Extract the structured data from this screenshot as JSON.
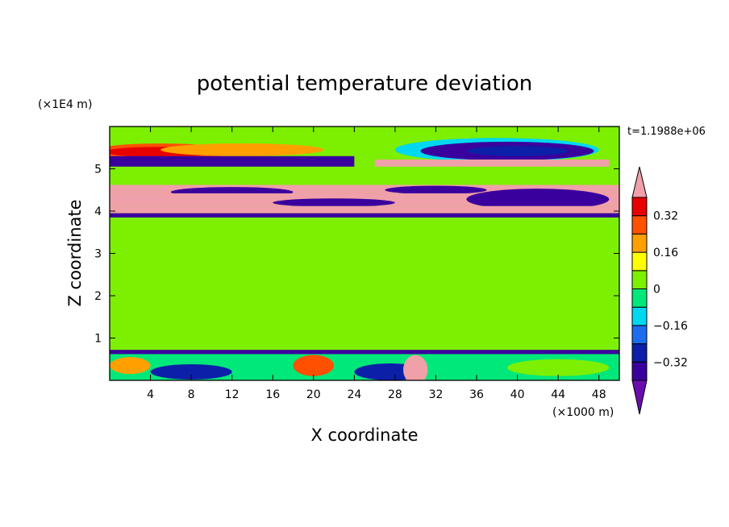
{
  "chart_data": {
    "type": "heatmap",
    "title": "potential temperature deviation",
    "time_label": "t=1.1988e+06",
    "xlabel": "X coordinate",
    "ylabel": "Z coordinate",
    "x_unit": "(×1000 m)",
    "y_unit": "(×1E4 m)",
    "xlim": [
      0,
      50
    ],
    "ylim": [
      0,
      6
    ],
    "x_ticks": [
      {
        "value": 4,
        "label": "4"
      },
      {
        "value": 8,
        "label": "8"
      },
      {
        "value": 12,
        "label": "12"
      },
      {
        "value": 16,
        "label": "16"
      },
      {
        "value": 20,
        "label": "20"
      },
      {
        "value": 24,
        "label": "24"
      },
      {
        "value": 28,
        "label": "28"
      },
      {
        "value": 32,
        "label": "32"
      },
      {
        "value": 36,
        "label": "36"
      },
      {
        "value": 40,
        "label": "40"
      },
      {
        "value": 44,
        "label": "44"
      },
      {
        "value": 48,
        "label": "48"
      }
    ],
    "y_ticks": [
      {
        "value": 1,
        "label": "1"
      },
      {
        "value": 2,
        "label": "2"
      },
      {
        "value": 3,
        "label": "3"
      },
      {
        "value": 4,
        "label": "4"
      },
      {
        "value": 5,
        "label": "5"
      }
    ],
    "colorbar": {
      "levels": [
        -0.4,
        -0.32,
        -0.24,
        -0.16,
        -0.08,
        0,
        0.08,
        0.16,
        0.24,
        0.32,
        0.4
      ],
      "labeled": [
        {
          "value": 0.32,
          "label": "0.32"
        },
        {
          "value": 0.16,
          "label": "0.16"
        },
        {
          "value": 0,
          "label": "0"
        },
        {
          "value": -0.16,
          "label": "−0.16"
        },
        {
          "value": -0.32,
          "label": "−0.32"
        }
      ],
      "colors": [
        "#6a0dad",
        "#3a009e",
        "#0c1fa8",
        "#1e6cf0",
        "#00d8f0",
        "#00e87a",
        "#7cf000",
        "#ffff00",
        "#ffa000",
        "#ff5000",
        "#e80000",
        "#f0a0a8"
      ]
    },
    "background_value": 0.04,
    "features": [
      {
        "kind": "band",
        "x": [
          0,
          50
        ],
        "y": [
          5.55,
          5.8
        ],
        "value": 0.04
      },
      {
        "kind": "blob",
        "cx": 5,
        "cy": 5.4,
        "rx": 7,
        "ry": 0.2,
        "value": 0.3
      },
      {
        "kind": "blob",
        "cx": 5,
        "cy": 5.4,
        "rx": 5.5,
        "ry": 0.12,
        "value": 0.36
      },
      {
        "kind": "blob",
        "cx": 13,
        "cy": 5.45,
        "rx": 8,
        "ry": 0.15,
        "value": 0.22
      },
      {
        "kind": "blob",
        "cx": 38,
        "cy": 5.45,
        "rx": 10,
        "ry": 0.28,
        "value": -0.12
      },
      {
        "kind": "blob",
        "cx": 39,
        "cy": 5.42,
        "rx": 8.5,
        "ry": 0.22,
        "value": -0.36
      },
      {
        "kind": "blob",
        "cx": 40,
        "cy": 5.42,
        "rx": 5,
        "ry": 0.12,
        "value": -0.28
      },
      {
        "kind": "band",
        "x": [
          0,
          24
        ],
        "y": [
          5.05,
          5.3
        ],
        "value": -0.36
      },
      {
        "kind": "band",
        "x": [
          26,
          49
        ],
        "y": [
          5.05,
          5.22
        ],
        "value": 0.42
      },
      {
        "kind": "band",
        "x": [
          0,
          50
        ],
        "y": [
          4.85,
          5.05
        ],
        "value": 0.04
      },
      {
        "kind": "band",
        "x": [
          0,
          50
        ],
        "y": [
          4.42,
          4.62
        ],
        "value": 0.42
      },
      {
        "kind": "blob",
        "cx": 12,
        "cy": 4.45,
        "rx": 6,
        "ry": 0.12,
        "value": -0.36
      },
      {
        "kind": "blob",
        "cx": 32,
        "cy": 4.5,
        "rx": 5,
        "ry": 0.1,
        "value": -0.36
      },
      {
        "kind": "band",
        "x": [
          0,
          50
        ],
        "y": [
          4.12,
          4.42
        ],
        "value": 0.42
      },
      {
        "kind": "blob",
        "cx": 42,
        "cy": 4.28,
        "rx": 7,
        "ry": 0.25,
        "value": -0.36
      },
      {
        "kind": "blob",
        "cx": 22,
        "cy": 4.2,
        "rx": 6,
        "ry": 0.1,
        "value": -0.36
      },
      {
        "kind": "band",
        "x": [
          0,
          50
        ],
        "y": [
          3.95,
          4.12
        ],
        "value": 0.42
      },
      {
        "kind": "band",
        "x": [
          0,
          50
        ],
        "y": [
          3.85,
          3.95
        ],
        "value": -0.36
      },
      {
        "kind": "band",
        "x": [
          0,
          50
        ],
        "y": [
          0.62,
          0.72
        ],
        "value": -0.36
      },
      {
        "kind": "band",
        "x": [
          0,
          50
        ],
        "y": [
          0.0,
          0.62
        ],
        "value": -0.06
      },
      {
        "kind": "blob",
        "cx": 8,
        "cy": 0.2,
        "rx": 4,
        "ry": 0.18,
        "value": -0.3
      },
      {
        "kind": "blob",
        "cx": 27.5,
        "cy": 0.2,
        "rx": 3.5,
        "ry": 0.2,
        "value": -0.26
      },
      {
        "kind": "blob",
        "cx": 30,
        "cy": 0.25,
        "rx": 1.2,
        "ry": 0.35,
        "value": 0.42
      },
      {
        "kind": "blob",
        "cx": 20,
        "cy": 0.35,
        "rx": 2,
        "ry": 0.25,
        "value": 0.3
      },
      {
        "kind": "blob",
        "cx": 44,
        "cy": 0.3,
        "rx": 5,
        "ry": 0.2,
        "value": 0.06
      },
      {
        "kind": "blob",
        "cx": 2,
        "cy": 0.35,
        "rx": 2,
        "ry": 0.2,
        "value": 0.2
      }
    ]
  }
}
